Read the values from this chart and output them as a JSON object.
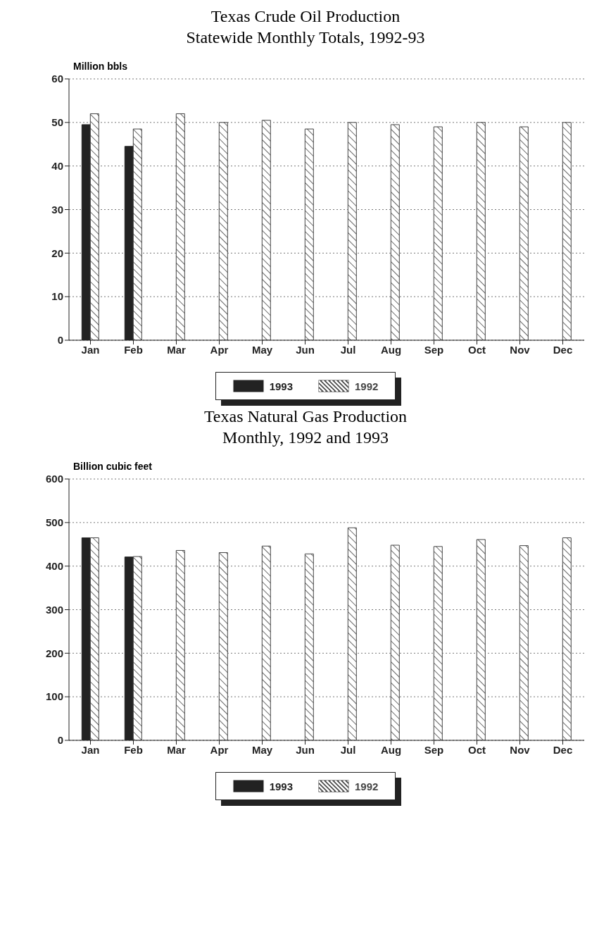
{
  "chart_data": [
    {
      "type": "bar",
      "title": "Texas Crude Oil Production",
      "subtitle": "Statewide Monthly Totals, 1992-93",
      "ylabel": "Million bbls",
      "categories": [
        "Jan",
        "Feb",
        "Mar",
        "Apr",
        "May",
        "Jun",
        "Jul",
        "Aug",
        "Sep",
        "Oct",
        "Nov",
        "Dec"
      ],
      "series": [
        {
          "name": "1993",
          "color": "#222222",
          "values": [
            49.5,
            44.5,
            null,
            null,
            null,
            null,
            null,
            null,
            null,
            null,
            null,
            null
          ]
        },
        {
          "name": "1992",
          "color": "#444444",
          "values": [
            52,
            48.5,
            52,
            50,
            50.5,
            48.5,
            50,
            49.5,
            49,
            50,
            49,
            50
          ]
        }
      ],
      "ylim": [
        0,
        60
      ],
      "yticks": [
        0,
        10,
        20,
        30,
        40,
        50,
        60
      ],
      "grid": "y",
      "legend": "bottom"
    },
    {
      "type": "bar",
      "title": "Texas Natural Gas Production",
      "subtitle": "Monthly, 1992 and 1993",
      "ylabel": "Billion cubic feet",
      "categories": [
        "Jan",
        "Feb",
        "Mar",
        "Apr",
        "May",
        "Jun",
        "Jul",
        "Aug",
        "Sep",
        "Oct",
        "Nov",
        "Dec"
      ],
      "series": [
        {
          "name": "1993",
          "color": "#222222",
          "values": [
            465,
            421,
            null,
            null,
            null,
            null,
            null,
            null,
            null,
            null,
            null,
            null
          ]
        },
        {
          "name": "1992",
          "color": "#444444",
          "values": [
            465,
            422,
            436,
            431,
            446,
            428,
            488,
            448,
            445,
            461,
            447,
            465
          ]
        }
      ],
      "ylim": [
        0,
        600
      ],
      "yticks": [
        0,
        100,
        200,
        300,
        400,
        500,
        600
      ],
      "grid": "y",
      "legend": "bottom"
    }
  ]
}
